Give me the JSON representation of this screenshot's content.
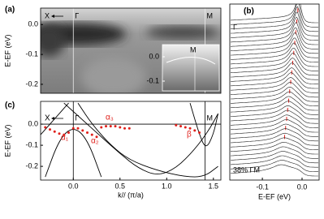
{
  "chart_data": [
    {
      "type": "image",
      "title": "(a)",
      "ylabel": "E-EF (eV)",
      "xlim": [
        -0.35,
        1.58
      ],
      "ylim": [
        -0.23,
        0.055
      ],
      "yticks": [
        {
          "value": 0,
          "label": "0.0"
        },
        -0.1,
        -0.2
      ],
      "vlines": [
        {
          "label": "Γ",
          "x": 0
        },
        {
          "label": "M",
          "x": 1.41
        }
      ],
      "annotations": [
        "X"
      ],
      "inset": {
        "label": "M",
        "ylim": [
          -0.14,
          0.05
        ],
        "yticks": [
          {
            "value": 0,
            "label": "0.0"
          },
          -0.1
        ]
      }
    },
    {
      "type": "edc",
      "title": "(b)",
      "xlabel": "E-EF (eV)",
      "xlim": [
        -0.182,
        0.043
      ],
      "xticks": [
        -0.1,
        {
          "value": 0,
          "label": "0.0"
        }
      ],
      "annotations": [
        "Γ",
        "38% ΓM"
      ]
    },
    {
      "type": "line",
      "title": "(c)",
      "xlabel": "k// (π/a)",
      "ylabel": "E-EF (eV)",
      "xlim": [
        -0.35,
        1.58
      ],
      "ylim": [
        -0.265,
        0.108
      ],
      "xticks": [
        {
          "value": 0,
          "label": "0.0"
        },
        0.5,
        {
          "value": 1,
          "label": "1.0"
        },
        1.5
      ],
      "yticks": [
        {
          "value": 0,
          "label": "0.0"
        },
        -0.1,
        -0.2
      ],
      "vlines": [
        {
          "label": "Γ",
          "x": 0
        },
        {
          "label": "M",
          "x": 1.41
        }
      ],
      "annotations": [
        "X",
        "α₁",
        "α₂",
        "α₃",
        "β"
      ],
      "series": [
        {
          "color": "#000000",
          "x": [
            -0.3,
            -0.15,
            0,
            0.15,
            0.3
          ],
          "values": [
            -0.25,
            -0.07,
            -0.01,
            -0.07,
            -0.25
          ]
        },
        {
          "color": "#000000",
          "x": [
            -0.1,
            0.1,
            0.3,
            0.5,
            0.7,
            0.9,
            1.1,
            1.3,
            1.45,
            1.55
          ],
          "values": [
            0.1,
            0.02,
            -0.06,
            -0.14,
            -0.21,
            -0.245,
            -0.21,
            -0.12,
            -0.03,
            0.05
          ]
        },
        {
          "color": "#000000",
          "x": [
            0.05,
            0.2,
            0.4,
            0.6,
            0.9,
            1.2,
            1.4,
            1.55
          ],
          "values": [
            0.1,
            0.0,
            -0.1,
            -0.17,
            -0.22,
            -0.25,
            -0.25,
            -0.2
          ]
        },
        {
          "color": "#000000",
          "x": [
            1.25,
            1.35,
            1.42,
            1.5,
            1.55
          ],
          "values": [
            0.1,
            -0.05,
            -0.12,
            -0.05,
            0.05
          ]
        },
        {
          "color": "#000000",
          "x": [
            -0.35,
            -0.25,
            -0.15,
            -0.05
          ],
          "values": [
            -0.05,
            0.0,
            0.05,
            0.1
          ]
        },
        {
          "color": "#e0201b",
          "marker": "dots",
          "x": [
            -0.3,
            -0.25,
            -0.2,
            -0.15,
            -0.1,
            -0.05,
            0.0,
            0.05,
            0.1,
            0.15,
            0.2,
            0.25,
            0.3,
            0.35,
            0.4,
            0.45,
            0.5,
            0.55,
            0.6,
            1.1,
            1.15,
            1.2,
            1.25,
            1.3,
            1.35
          ],
          "values": [
            -0.015,
            -0.025,
            -0.035,
            -0.045,
            -0.05,
            -0.04,
            -0.02,
            -0.02,
            -0.03,
            -0.04,
            -0.05,
            -0.06,
            -0.015,
            -0.01,
            -0.01,
            -0.01,
            -0.015,
            -0.02,
            -0.02,
            -0.005,
            -0.01,
            -0.015,
            -0.02,
            -0.03,
            -0.04
          ]
        }
      ]
    }
  ]
}
